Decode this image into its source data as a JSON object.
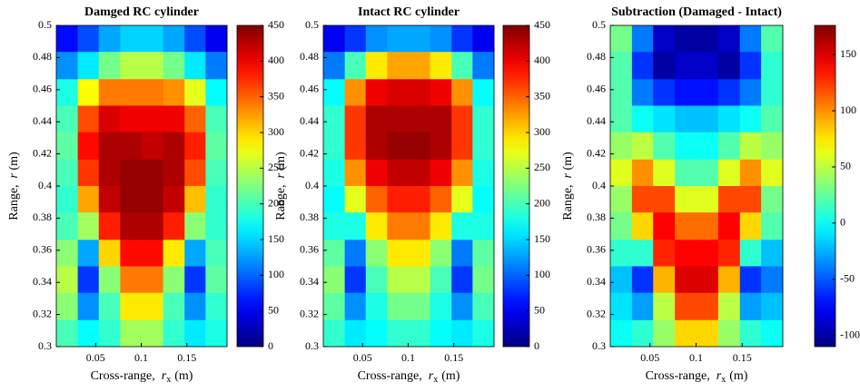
{
  "chart_data": [
    {
      "type": "heatmap",
      "title": "Damged RC cylinder",
      "colormap": "jet",
      "xlabel": [
        "Cross-range,",
        "r",
        "x",
        "(m)"
      ],
      "ylabel": [
        "Range,",
        "r",
        "(m)"
      ],
      "xlim": [
        0.007,
        0.194
      ],
      "ylim": [
        0.3,
        0.5
      ],
      "xticks": [
        0.05,
        0.1,
        0.15
      ],
      "yticks": [
        0.3,
        0.32,
        0.34,
        0.36,
        0.38,
        0.4,
        0.42,
        0.44,
        0.46,
        0.48,
        0.5
      ],
      "clim": [
        0,
        450
      ],
      "cticks": [
        0,
        50,
        100,
        150,
        200,
        250,
        300,
        350,
        400,
        450
      ],
      "x": [
        0.019,
        0.042,
        0.065,
        0.089,
        0.112,
        0.136,
        0.159,
        0.182
      ],
      "y": [
        0.492,
        0.475,
        0.458,
        0.442,
        0.425,
        0.408,
        0.392,
        0.375,
        0.358,
        0.342,
        0.325,
        0.308
      ],
      "z": [
        [
          60,
          90,
          130,
          150,
          150,
          130,
          90,
          50
        ],
        [
          120,
          160,
          220,
          250,
          250,
          220,
          160,
          110
        ],
        [
          180,
          280,
          340,
          340,
          340,
          330,
          270,
          170
        ],
        [
          200,
          360,
          410,
          400,
          400,
          400,
          350,
          200
        ],
        [
          210,
          390,
          430,
          430,
          420,
          430,
          380,
          210
        ],
        [
          200,
          370,
          430,
          440,
          440,
          430,
          360,
          200
        ],
        [
          190,
          320,
          420,
          440,
          440,
          420,
          310,
          190
        ],
        [
          200,
          240,
          380,
          430,
          430,
          380,
          230,
          190
        ],
        [
          230,
          130,
          300,
          390,
          390,
          290,
          130,
          200
        ],
        [
          250,
          80,
          230,
          340,
          340,
          230,
          80,
          210
        ],
        [
          230,
          120,
          200,
          290,
          290,
          200,
          120,
          190
        ],
        [
          200,
          170,
          190,
          240,
          240,
          190,
          160,
          180
        ]
      ]
    },
    {
      "type": "heatmap",
      "title": "Intact RC cylinder",
      "colormap": "jet",
      "xlabel": [
        "Cross-range,",
        "r",
        "x",
        "(m)"
      ],
      "ylabel": [
        "Range,",
        "r",
        "(m)"
      ],
      "xlim": [
        0.007,
        0.194
      ],
      "ylim": [
        0.3,
        0.5
      ],
      "xticks": [
        0.05,
        0.1,
        0.15
      ],
      "yticks": [
        0.3,
        0.32,
        0.34,
        0.36,
        0.38,
        0.4,
        0.42,
        0.44,
        0.46,
        0.48,
        0.5
      ],
      "clim": [
        0,
        450
      ],
      "cticks": [
        0,
        50,
        100,
        150,
        200,
        250,
        300,
        350,
        400,
        450
      ],
      "x": [
        0.019,
        0.042,
        0.065,
        0.089,
        0.112,
        0.136,
        0.159,
        0.182
      ],
      "y": [
        0.492,
        0.475,
        0.458,
        0.442,
        0.425,
        0.408,
        0.392,
        0.375,
        0.358,
        0.342,
        0.325,
        0.308
      ],
      "z": [
        [
          50,
          80,
          120,
          130,
          130,
          120,
          80,
          50
        ],
        [
          110,
          200,
          290,
          320,
          320,
          290,
          200,
          110
        ],
        [
          170,
          330,
          400,
          410,
          410,
          400,
          330,
          170
        ],
        [
          190,
          370,
          430,
          430,
          430,
          430,
          370,
          190
        ],
        [
          190,
          370,
          430,
          440,
          440,
          430,
          370,
          190
        ],
        [
          180,
          330,
          400,
          420,
          420,
          400,
          330,
          180
        ],
        [
          170,
          270,
          350,
          380,
          380,
          350,
          270,
          170
        ],
        [
          180,
          180,
          290,
          340,
          340,
          290,
          180,
          180
        ],
        [
          210,
          110,
          230,
          290,
          290,
          230,
          110,
          210
        ],
        [
          230,
          80,
          200,
          250,
          250,
          200,
          80,
          220
        ],
        [
          210,
          120,
          180,
          220,
          220,
          180,
          120,
          200
        ],
        [
          190,
          160,
          170,
          190,
          190,
          170,
          160,
          180
        ]
      ]
    },
    {
      "type": "heatmap",
      "title": "Subtraction (Damaged - Intact)",
      "colormap": "jet",
      "xlabel": [
        "Cross-range,",
        "r",
        "x",
        "(m)"
      ],
      "ylabel": [
        "Range,",
        "r",
        "(m)"
      ],
      "xlim": [
        0.007,
        0.194
      ],
      "ylim": [
        0.3,
        0.5
      ],
      "xticks": [
        0.05,
        0.1,
        0.15
      ],
      "yticks": [
        0.3,
        0.32,
        0.34,
        0.36,
        0.38,
        0.4,
        0.42,
        0.44,
        0.46,
        0.48,
        0.5
      ],
      "clim": [
        -110,
        176
      ],
      "cticks": [
        -100,
        -50,
        0,
        50,
        100,
        150
      ],
      "x": [
        0.019,
        0.042,
        0.065,
        0.089,
        0.112,
        0.136,
        0.159,
        0.182
      ],
      "y": [
        0.492,
        0.475,
        0.458,
        0.442,
        0.425,
        0.408,
        0.392,
        0.375,
        0.358,
        0.342,
        0.325,
        0.308
      ],
      "z": [
        [
          30,
          -40,
          -90,
          -100,
          -100,
          -90,
          -40,
          20
        ],
        [
          20,
          -60,
          -100,
          -90,
          -90,
          -100,
          -60,
          10
        ],
        [
          20,
          -40,
          -60,
          -70,
          -70,
          -60,
          -40,
          10
        ],
        [
          20,
          0,
          -10,
          -20,
          -20,
          -10,
          0,
          20
        ],
        [
          40,
          50,
          20,
          0,
          0,
          20,
          50,
          40
        ],
        [
          60,
          100,
          60,
          20,
          20,
          60,
          100,
          60
        ],
        [
          40,
          120,
          120,
          60,
          60,
          120,
          120,
          30
        ],
        [
          30,
          80,
          140,
          110,
          110,
          140,
          80,
          20
        ],
        [
          10,
          10,
          130,
          140,
          140,
          130,
          10,
          -20
        ],
        [
          -20,
          -60,
          90,
          150,
          150,
          90,
          -60,
          -40
        ],
        [
          -10,
          -30,
          50,
          120,
          120,
          50,
          -30,
          -20
        ],
        [
          0,
          10,
          40,
          80,
          80,
          40,
          10,
          0
        ]
      ]
    }
  ]
}
